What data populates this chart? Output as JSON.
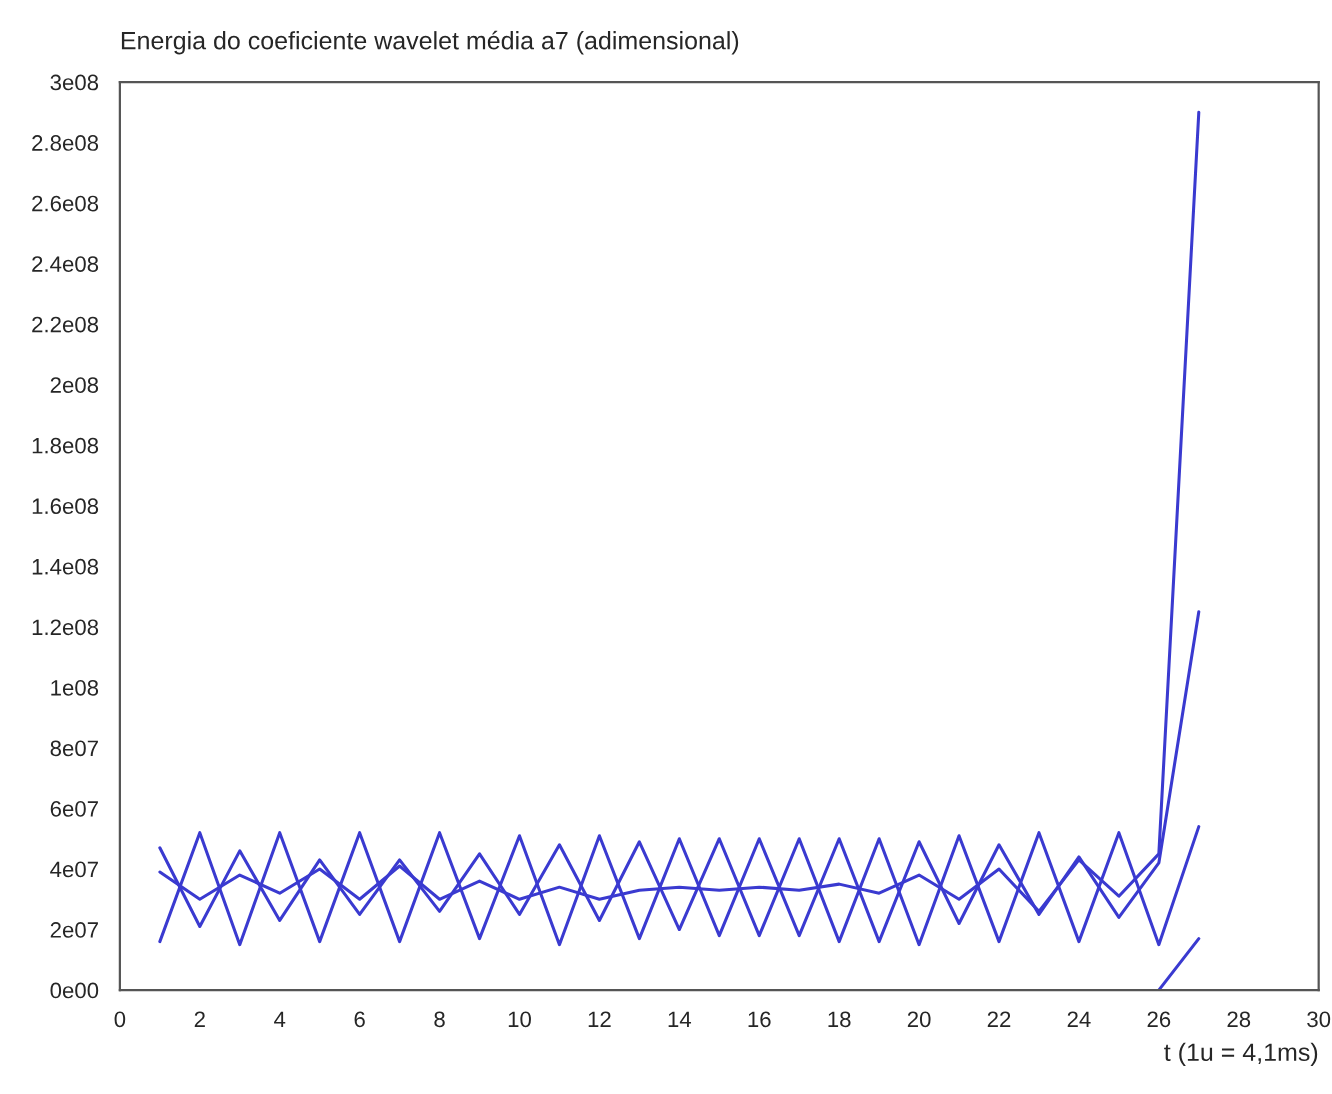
{
  "chart_data": {
    "type": "line",
    "title": "Energia do coeficiente wavelet média a7 (adimensional)",
    "xlabel": "t (1u = 4,1ms)",
    "series": [
      {
        "color": "#3a3ad0",
        "x": [
          1,
          2,
          3,
          4,
          5,
          6,
          7,
          8,
          9,
          10,
          11,
          12,
          13,
          14,
          15,
          16,
          17,
          18,
          19,
          20,
          21,
          22,
          23,
          24,
          25,
          26,
          27
        ],
        "values": [
          16000000,
          52000000,
          15000000,
          52000000,
          16000000,
          52000000,
          16000000,
          52000000,
          17000000,
          51000000,
          15000000,
          51000000,
          17000000,
          50000000,
          18000000,
          50000000,
          18000000,
          50000000,
          16000000,
          49000000,
          22000000,
          48000000,
          25000000,
          44000000,
          24000000,
          42000000,
          125000000
        ]
      },
      {
        "color": "#3a3ad0",
        "x": [
          1,
          2,
          3,
          4,
          5,
          6,
          7,
          8,
          9,
          10,
          11,
          12,
          13,
          14,
          15,
          16,
          17,
          18,
          19,
          20,
          21,
          22,
          23,
          24,
          25,
          26,
          27
        ],
        "values": [
          47000000,
          21000000,
          46000000,
          23000000,
          43000000,
          25000000,
          43000000,
          26000000,
          45000000,
          25000000,
          48000000,
          23000000,
          49000000,
          20000000,
          50000000,
          18000000,
          50000000,
          16000000,
          50000000,
          15000000,
          51000000,
          16000000,
          52000000,
          16000000,
          52000000,
          15000000,
          54000000
        ]
      },
      {
        "color": "#3a3ad0",
        "x": [
          1,
          2,
          3,
          4,
          5,
          6,
          7,
          8,
          9,
          10,
          11,
          12,
          13,
          14,
          15,
          16,
          17,
          18,
          19,
          20,
          21,
          22,
          23,
          24,
          25,
          26,
          27
        ],
        "values": [
          39000000,
          30000000,
          38000000,
          32000000,
          40000000,
          30000000,
          41000000,
          30000000,
          36000000,
          30000000,
          34000000,
          30000000,
          33000000,
          34000000,
          33000000,
          34000000,
          33000000,
          35000000,
          32000000,
          38000000,
          30000000,
          40000000,
          26000000,
          43000000,
          31000000,
          45000000,
          290000000
        ]
      },
      {
        "color": "#3a3ad0",
        "x": [
          26,
          27
        ],
        "values": [
          0,
          17000000
        ]
      }
    ],
    "xlim": [
      0,
      30
    ],
    "xticks": [
      0,
      2,
      4,
      6,
      8,
      10,
      12,
      14,
      16,
      18,
      20,
      22,
      24,
      26,
      28,
      30
    ],
    "ylim": [
      0,
      300000000
    ],
    "yticks": [
      {
        "value": 0,
        "label": "0e00"
      },
      {
        "value": 20000000,
        "label": "2e07"
      },
      {
        "value": 40000000,
        "label": "4e07"
      },
      {
        "value": 60000000,
        "label": "6e07"
      },
      {
        "value": 80000000,
        "label": "8e07"
      },
      {
        "value": 100000000,
        "label": "1e08"
      },
      {
        "value": 120000000,
        "label": "1.2e08"
      },
      {
        "value": 140000000,
        "label": "1.4e08"
      },
      {
        "value": 160000000,
        "label": "1.6e08"
      },
      {
        "value": 180000000,
        "label": "1.8e08"
      },
      {
        "value": 200000000,
        "label": "2e08"
      },
      {
        "value": 220000000,
        "label": "2.2e08"
      },
      {
        "value": 240000000,
        "label": "2.4e08"
      },
      {
        "value": 260000000,
        "label": "2.6e08"
      },
      {
        "value": 280000000,
        "label": "2.8e08"
      },
      {
        "value": 300000000,
        "label": "3e08"
      }
    ],
    "grid": false,
    "legend": false
  }
}
